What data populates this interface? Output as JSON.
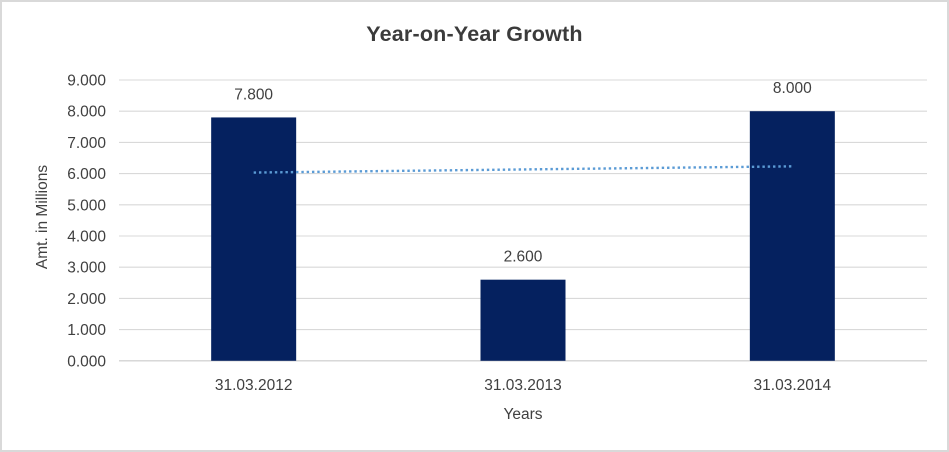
{
  "window": {
    "background_color": "#ffffff",
    "border_color": "#d9d9d9"
  },
  "chart_data": {
    "type": "bar",
    "title": "Year-on-Year Growth",
    "xlabel": "Years",
    "ylabel": "Amt. in Millions",
    "categories": [
      "31.03.2012",
      "31.03.2013",
      "31.03.2014"
    ],
    "values": [
      7.8,
      2.6,
      8.0
    ],
    "data_labels": [
      "7.800",
      "2.600",
      "8.000"
    ],
    "ylim": [
      0,
      9
    ],
    "ytick_labels": [
      "0.000",
      "1.000",
      "2.000",
      "3.000",
      "4.000",
      "5.000",
      "6.000",
      "7.000",
      "8.000",
      "9.000"
    ],
    "grid": true,
    "legend": "none",
    "colors": {
      "bar": "#05215f",
      "trendline": "#5b9bd5",
      "gridline": "#d9d9d9",
      "axis_line": "#d2d2d2",
      "title_text": "#3b3b3b",
      "label_text": "#404040"
    },
    "trendline": {
      "type": "linear",
      "style": "dotted",
      "start_value": 6.033,
      "end_value": 6.233
    }
  }
}
